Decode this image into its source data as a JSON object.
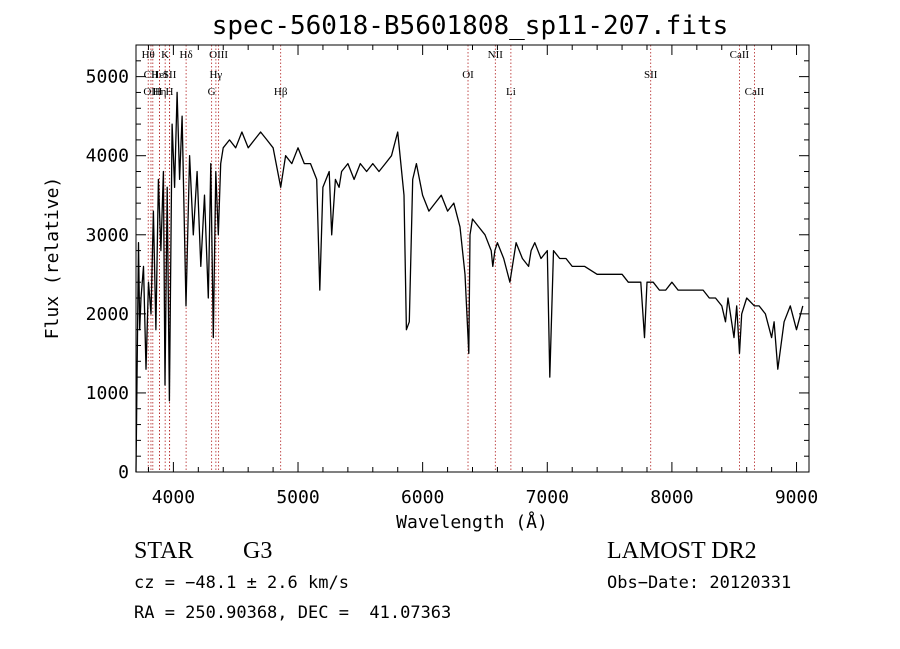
{
  "chart_data": {
    "type": "line",
    "title": "spec-56018-B5601808_sp11-207.fits",
    "xlabel": "Wavelength (Å)",
    "ylabel": "Flux (relative)",
    "xlim": [
      3700,
      9100
    ],
    "ylim": [
      0,
      5400
    ],
    "grid": false,
    "x_ticks": [
      4000,
      5000,
      6000,
      7000,
      8000,
      9000
    ],
    "y_ticks": [
      0,
      1000,
      2000,
      3000,
      4000,
      5000
    ],
    "x_tick_labels": [
      "4000",
      "5000",
      "6000",
      "7000",
      "8000",
      "9000"
    ],
    "y_tick_labels": [
      "0",
      "1000",
      "2000",
      "3000",
      "4000",
      "5000"
    ],
    "series": [
      {
        "x": [
          3700,
          3710,
          3720,
          3730,
          3740,
          3760,
          3780,
          3800,
          3820,
          3840,
          3860,
          3880,
          3900,
          3920,
          3933,
          3950,
          3968,
          3990,
          4010,
          4030,
          4050,
          4070,
          4101,
          4130,
          4160,
          4190,
          4220,
          4250,
          4280,
          4300,
          4320,
          4340,
          4360,
          4380,
          4400,
          4450,
          4500,
          4550,
          4600,
          4650,
          4700,
          4750,
          4800,
          4861,
          4900,
          4950,
          5000,
          5050,
          5100,
          5150,
          5175,
          5200,
          5250,
          5270,
          5300,
          5330,
          5350,
          5400,
          5450,
          5500,
          5550,
          5600,
          5650,
          5700,
          5750,
          5800,
          5850,
          5870,
          5893,
          5920,
          5950,
          6000,
          6050,
          6100,
          6150,
          6200,
          6250,
          6300,
          6340,
          6370,
          6380,
          6400,
          6450,
          6500,
          6550,
          6563,
          6580,
          6600,
          6650,
          6700,
          6750,
          6800,
          6850,
          6870,
          6900,
          6950,
          7000,
          7020,
          7050,
          7100,
          7150,
          7200,
          7250,
          7300,
          7400,
          7500,
          7600,
          7650,
          7700,
          7750,
          7780,
          7800,
          7850,
          7900,
          7950,
          8000,
          8050,
          8100,
          8150,
          8200,
          8250,
          8300,
          8350,
          8400,
          8430,
          8450,
          8498,
          8520,
          8542,
          8560,
          8600,
          8662,
          8700,
          8750,
          8800,
          8820,
          8850,
          8900,
          8950,
          9000,
          9050
        ],
        "y": [
          0,
          1400,
          2900,
          1800,
          2200,
          2600,
          1300,
          2400,
          2000,
          3300,
          1800,
          3700,
          2800,
          3800,
          1100,
          3600,
          900,
          4400,
          3600,
          4800,
          3700,
          4500,
          2100,
          4000,
          3000,
          3800,
          2600,
          3500,
          2200,
          3900,
          1700,
          3800,
          3000,
          3900,
          4100,
          4200,
          4100,
          4300,
          4100,
          4200,
          4300,
          4200,
          4100,
          3600,
          4000,
          3900,
          4100,
          3900,
          3900,
          3700,
          2300,
          3600,
          3800,
          3000,
          3700,
          3600,
          3800,
          3900,
          3700,
          3900,
          3800,
          3900,
          3800,
          3900,
          4000,
          4300,
          3500,
          1800,
          1900,
          3700,
          3900,
          3500,
          3300,
          3400,
          3500,
          3300,
          3400,
          3100,
          2500,
          1500,
          3000,
          3200,
          3100,
          3000,
          2800,
          2600,
          2800,
          2900,
          2700,
          2400,
          2900,
          2700,
          2600,
          2800,
          2900,
          2700,
          2800,
          1200,
          2800,
          2700,
          2700,
          2600,
          2600,
          2600,
          2500,
          2500,
          2500,
          2400,
          2400,
          2400,
          1700,
          2400,
          2400,
          2300,
          2300,
          2400,
          2300,
          2300,
          2300,
          2300,
          2300,
          2200,
          2200,
          2100,
          1900,
          2200,
          1700,
          2100,
          1500,
          2000,
          2200,
          2100,
          2100,
          2000,
          1700,
          1900,
          1300,
          1900,
          2100,
          1800,
          2100
        ]
      }
    ],
    "lines": [
      {
        "label": "Hθ",
        "x": 3798
      },
      {
        "label": "CII",
        "x": 3820
      },
      {
        "label": "OIII",
        "x": 3835
      },
      {
        "label": "K",
        "x": 3934
      },
      {
        "label": "HeI",
        "x": 3889
      },
      {
        "label": "Hη",
        "x": 3889
      },
      {
        "label": "SII",
        "x": 3970
      },
      {
        "label": "H",
        "x": 3969
      },
      {
        "label": "Hδ",
        "x": 4102
      },
      {
        "label": "OIII",
        "x": 4363
      },
      {
        "label": "Hγ",
        "x": 4341
      },
      {
        "label": "G",
        "x": 4307
      },
      {
        "label": "Hβ",
        "x": 4861
      },
      {
        "label": "OI",
        "x": 6364
      },
      {
        "label": "NII",
        "x": 6583
      },
      {
        "label": "Li",
        "x": 6708
      },
      {
        "label": "SII",
        "x": 7830
      },
      {
        "label": "CaII",
        "x": 8542
      },
      {
        "label": "CaII",
        "x": 8662
      }
    ]
  },
  "info": {
    "object_type": "STAR",
    "spectral_class": "G3",
    "survey": "LAMOST DR2",
    "cz": "cz = −48.1 ± 2.6 km/s",
    "obs_date": "Obs−Date: 20120331",
    "coords": "RA = 250.90368, DEC =  41.07363"
  },
  "colors": {
    "spectrum": "#000000",
    "line_marker": "#b22222",
    "axes": "#000000"
  }
}
